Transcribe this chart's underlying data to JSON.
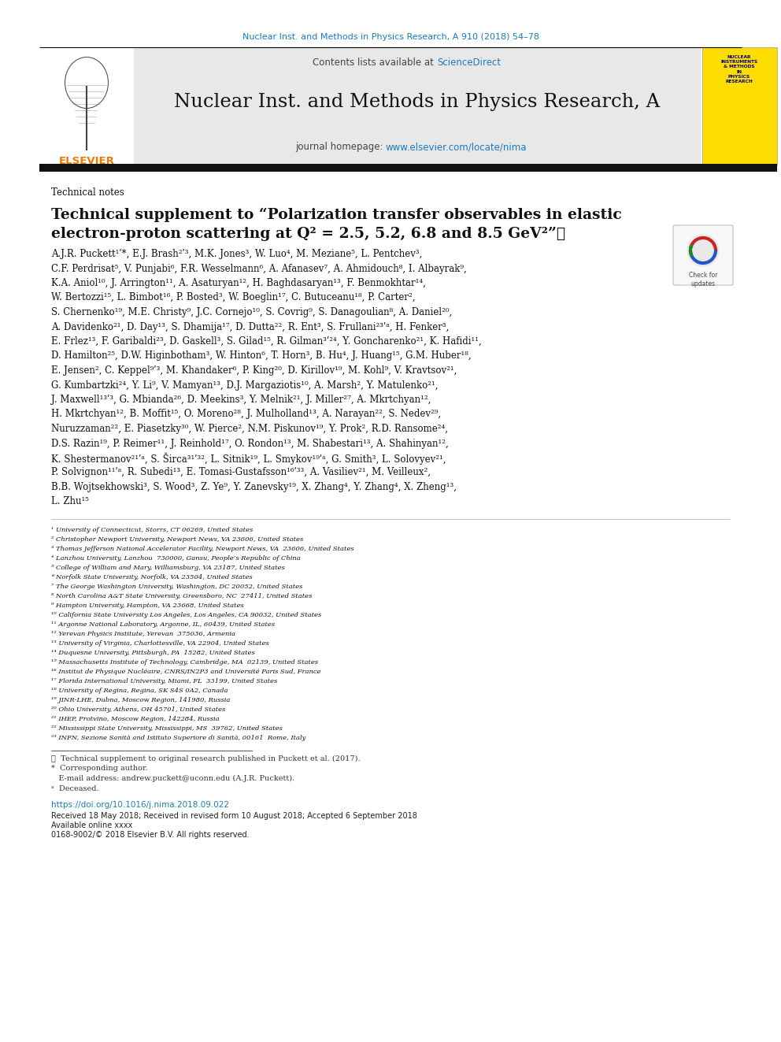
{
  "journal_ref": "Nuclear Inst. and Methods in Physics Research, A 910 (2018) 54–78",
  "journal_name": "Nuclear Inst. and Methods in Physics Research, A",
  "section_label": "Technical notes",
  "title_line1": "Technical supplement to “Polarization transfer observables in elastic",
  "title_line2": "electron-proton scattering at Q² = 2.5, 5.2, 6.8 and 8.5 GeV²”★",
  "authors_lines": [
    "A.J.R. Puckett¹ʹ*, E.J. Brash²ʹ³, M.K. Jones³, W. Luo⁴, M. Meziane⁵, L. Pentchev³,",
    "C.F. Perdrisat⁵, V. Punjabi⁶, F.R. Wesselmann⁶, A. Afanasev⁷, A. Ahmidouch⁸, I. Albayrak⁹,",
    "K.A. Aniol¹⁰, J. Arrington¹¹, A. Asaturyan¹², H. Baghdasaryan¹³, F. Benmokhtar¹⁴,",
    "W. Bertozzi¹⁵, L. Bimbot¹⁶, P. Bosted³, W. Boeglin¹⁷, C. Butuceanu¹⁸, P. Carter²,",
    "S. Chernenko¹⁹, M.E. Christy⁹, J.C. Cornejo¹⁰, S. Covrig⁹, S. Danagoulian⁸, A. Daniel²⁰,",
    "A. Davidenko²¹, D. Day¹³, S. Dhamija¹⁷, D. Dutta²², R. Ent³, S. Frullani²³ʹᵃ, H. Fenker³,",
    "E. Frlez¹³, F. Garibaldi²³, D. Gaskell³, S. Gilad¹⁵, R. Gilman³ʹ²⁴, Y. Goncharenko²¹, K. Hafidi¹¹,",
    "D. Hamilton²⁵, D.W. Higinbotham³, W. Hinton⁶, T. Horn³, B. Hu⁴, J. Huang¹⁵, G.M. Huber¹⁸,",
    "E. Jensen², C. Keppel⁹ʹ³, M. Khandaker⁶, P. King²⁰, D. Kirillov¹⁹, M. Kohl⁹, V. Kravtsov²¹,",
    "G. Kumbartzki²⁴, Y. Li⁹, V. Mamyan¹³, D.J. Margaziotis¹⁰, A. Marsh², Y. Matulenko²¹,",
    "J. Maxwell¹³ʹ³, G. Mbianda²⁶, D. Meekins³, Y. Melnik²¹, J. Miller²⁷, A. Mkrtchyan¹²,",
    "H. Mkrtchyan¹², B. Moffit¹⁵, O. Moreno²⁸, J. Mulholland¹³, A. Narayan²², S. Nedev²⁹,",
    "Nuruzzaman²², E. Piasetzky³⁰, W. Pierce², N.M. Piskunov¹⁹, Y. Prok², R.D. Ransome²⁴,",
    "D.S. Razin¹⁹, P. Reimer¹¹, J. Reinhold¹⁷, O. Rondon¹³, M. Shabestari¹³, A. Shahinyan¹²,",
    "K. Shestermanov²¹ʹᵃ, S. Širca³¹ʹ³², L. Sitnik¹⁹, L. Smykov¹⁹ʹᵃ, G. Smith³, L. Solovyev²¹,",
    "P. Solvignon¹¹ʹᵃ, R. Subedi¹³, E. Tomasi-Gustafsson¹⁶ʹ³³, A. Vasiliev²¹, M. Veilleux²,",
    "B.B. Wojtsekhowski³, S. Wood³, Z. Ye⁹, Y. Zanevsky¹⁹, X. Zhang⁴, Y. Zhang⁴, X. Zheng¹³,",
    "L. Zhu¹⁵"
  ],
  "affiliations": [
    "¹ University of Connecticut, Storrs, CT 06269, United States",
    "² Christopher Newport University, Newport News, VA 23606, United States",
    "³ Thomas Jefferson National Accelerator Facility, Newport News, VA  23606, United States",
    "⁴ Lanzhou University, Lanzhou  730000, Gansu, People’s Republic of China",
    "⁵ College of William and Mary, Williamsburg, VA 23187, United States",
    "⁶ Norfolk State University, Norfolk, VA 23504, United States",
    "⁷ The George Washington University, Washington, DC 20052, United States",
    "⁸ North Carolina A&T State University, Greensboro, NC  27411, United States",
    "⁹ Hampton University, Hampton, VA 23668, United States",
    "¹⁰ California State University Los Angeles, Los Angeles, CA 90032, United States",
    "¹¹ Argonne National Laboratory, Argonne, IL, 60439, United States",
    "¹² Yerevan Physics Institute, Yerevan  375036, Armenia",
    "¹³ University of Virginia, Charlottesville, VA 22904, United States",
    "¹⁴ Duquesne University, Pittsburgh, PA  15282, United States",
    "¹⁵ Massachusetts Institute of Technology, Cambridge, MA  02139, United States",
    "¹⁶ Institut de Physique Nucléaire, CNRS/IN2P3 and Université Paris Sud, France",
    "¹⁷ Florida International University, Miami, FL  33199, United States",
    "¹⁸ University of Regina, Regina, SK S4S 0A2, Canada",
    "¹⁹ JINR-LHE, Dubna, Moscow Region, 141980, Russia",
    "²⁰ Ohio University, Athens, OH 45701, United States",
    "²¹ IHEP, Protvino, Moscow Region, 142284, Russia",
    "²² Mississippi State University, Mississippi, MS  39762, United States",
    "²³ INFN, Sezione Sanità and Istituto Superiore di Sanità, 00161  Rome, Italy"
  ],
  "footnotes": [
    "★  Technical supplement to original research published in Puckett et al. (2017).",
    "*  Corresponding author.",
    "   E-mail address: andrew.puckett@uconn.edu (A.J.R. Puckett).",
    "ᵃ  Deceased."
  ],
  "doi_line": "https://doi.org/10.1016/j.nima.2018.09.022",
  "received_line": "Received 18 May 2018; Received in revised form 10 August 2018; Accepted 6 September 2018",
  "available_line": "Available online xxxx",
  "rights_line": "0168-9002/© 2018 Elsevier B.V. All rights reserved.",
  "bg_color": "#ffffff",
  "journal_ref_color": "#1a7bbf",
  "sciencedirect_color": "#1a7bbf",
  "url_color": "#1a7bbf",
  "doi_color": "#1a7bbf",
  "elsevier_orange": "#f07800",
  "black_bar_color": "#111111",
  "header_bg": "#e8e8e8"
}
